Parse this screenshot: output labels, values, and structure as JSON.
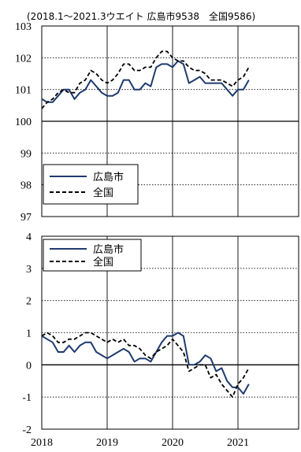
{
  "chart_data": [
    {
      "type": "line",
      "annotation": "(2018.1～2021.3ウエイト 広島市9538　全国9586)",
      "ylim": [
        97,
        103
      ],
      "ytick_labels": [
        "97",
        "98",
        "99",
        "100",
        "101",
        "102",
        "103"
      ],
      "grid": "horizontal dotted",
      "legend_position": "bottom-left",
      "colors": {
        "広島市": "#1f3a6e",
        "全国": "#000000"
      },
      "x": [
        "2018-01",
        "2018-02",
        "2018-03",
        "2018-04",
        "2018-05",
        "2018-06",
        "2018-07",
        "2018-08",
        "2018-09",
        "2018-10",
        "2018-11",
        "2018-12",
        "2019-01",
        "2019-02",
        "2019-03",
        "2019-04",
        "2019-05",
        "2019-06",
        "2019-07",
        "2019-08",
        "2019-09",
        "2019-10",
        "2019-11",
        "2019-12",
        "2020-01",
        "2020-02",
        "2020-03",
        "2020-04",
        "2020-05",
        "2020-06",
        "2020-07",
        "2020-08",
        "2020-09",
        "2020-10",
        "2020-11",
        "2020-12",
        "2021-01",
        "2021-02",
        "2021-03"
      ],
      "series": [
        {
          "name": "広島市",
          "style": "solid",
          "values": [
            100.7,
            100.6,
            100.6,
            100.8,
            101.0,
            101.0,
            100.7,
            100.9,
            101.0,
            101.3,
            101.1,
            100.9,
            100.8,
            100.8,
            100.9,
            101.3,
            101.3,
            101.0,
            101.0,
            101.2,
            101.1,
            101.7,
            101.8,
            101.8,
            101.7,
            101.9,
            101.8,
            101.2,
            101.3,
            101.4,
            101.2,
            101.2,
            101.2,
            101.2,
            101.0,
            100.8,
            101.0,
            101.0,
            101.3
          ]
        },
        {
          "name": "全国",
          "style": "dashed",
          "values": [
            100.4,
            100.6,
            100.7,
            100.9,
            101.0,
            100.9,
            100.9,
            101.2,
            101.3,
            101.6,
            101.5,
            101.3,
            101.2,
            101.3,
            101.5,
            101.8,
            101.8,
            101.6,
            101.6,
            101.7,
            101.7,
            102.0,
            102.2,
            102.2,
            102.0,
            101.9,
            101.9,
            101.7,
            101.6,
            101.6,
            101.5,
            101.3,
            101.3,
            101.3,
            101.2,
            101.1,
            101.3,
            101.4,
            101.7
          ]
        }
      ]
    },
    {
      "type": "line",
      "ylim": [
        -2,
        4
      ],
      "ytick_labels": [
        "-2",
        "-1",
        "0",
        "1",
        "2",
        "3",
        "4"
      ],
      "xtick_labels": [
        "2018",
        "2019",
        "2020",
        "2021"
      ],
      "grid": "horizontal dotted",
      "legend_position": "top-left",
      "colors": {
        "広島市": "#1f3a6e",
        "全国": "#000000"
      },
      "x": [
        "2018-01",
        "2018-02",
        "2018-03",
        "2018-04",
        "2018-05",
        "2018-06",
        "2018-07",
        "2018-08",
        "2018-09",
        "2018-10",
        "2018-11",
        "2018-12",
        "2019-01",
        "2019-02",
        "2019-03",
        "2019-04",
        "2019-05",
        "2019-06",
        "2019-07",
        "2019-08",
        "2019-09",
        "2019-10",
        "2019-11",
        "2019-12",
        "2020-01",
        "2020-02",
        "2020-03",
        "2020-04",
        "2020-05",
        "2020-06",
        "2020-07",
        "2020-08",
        "2020-09",
        "2020-10",
        "2020-11",
        "2020-12",
        "2021-01",
        "2021-02",
        "2021-03"
      ],
      "series": [
        {
          "name": "広島市",
          "style": "solid",
          "values": [
            0.9,
            0.8,
            0.7,
            0.4,
            0.4,
            0.6,
            0.4,
            0.6,
            0.7,
            0.7,
            0.4,
            0.3,
            0.2,
            0.3,
            0.4,
            0.5,
            0.4,
            0.1,
            0.2,
            0.2,
            0.1,
            0.4,
            0.7,
            0.9,
            0.9,
            1.0,
            0.9,
            0.0,
            0.0,
            0.1,
            0.3,
            0.2,
            -0.2,
            -0.1,
            -0.5,
            -0.7,
            -0.7,
            -0.9,
            -0.6
          ]
        },
        {
          "name": "全国",
          "style": "dashed",
          "values": [
            0.9,
            1.0,
            0.9,
            0.7,
            0.7,
            0.8,
            0.8,
            0.9,
            1.0,
            1.0,
            0.9,
            0.8,
            0.7,
            0.8,
            0.7,
            0.8,
            0.6,
            0.6,
            0.5,
            0.3,
            0.2,
            0.4,
            0.5,
            0.6,
            0.8,
            0.6,
            0.4,
            -0.2,
            -0.1,
            0.0,
            0.0,
            -0.4,
            -0.3,
            -0.6,
            -0.8,
            -1.0,
            -0.6,
            -0.4,
            -0.1
          ]
        }
      ]
    }
  ]
}
